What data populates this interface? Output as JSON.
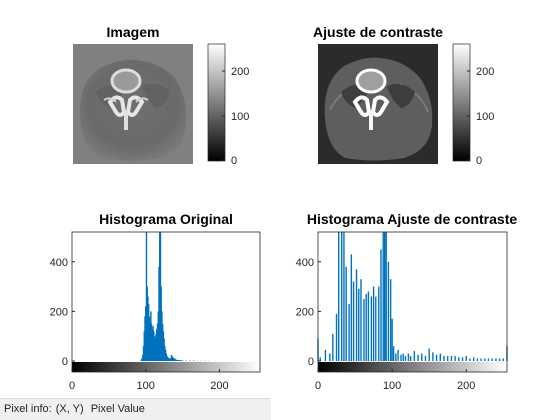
{
  "panels": {
    "image1": {
      "title": "Imagem",
      "colorbar_ticks": [
        "0",
        "100",
        "200"
      ]
    },
    "image2": {
      "title": "Ajuste de contraste",
      "colorbar_ticks": [
        "0",
        "100",
        "200"
      ]
    }
  },
  "colors": {
    "bar": "#0072bd",
    "axis": "#262626"
  },
  "status_bar": {
    "label": "Pixel info:",
    "coords": "(X, Y)",
    "value": "Pixel Value"
  },
  "chart_data": [
    {
      "type": "bar",
      "title": "Histograma Original",
      "xticks": [
        "0",
        "100",
        "200"
      ],
      "yticks": [
        "0",
        "200",
        "400"
      ],
      "xlim": [
        0,
        255
      ],
      "ylim": [
        0,
        520
      ],
      "x": [
        94,
        95,
        96,
        97,
        98,
        99,
        100,
        101,
        102,
        103,
        104,
        105,
        106,
        107,
        108,
        109,
        110,
        111,
        112,
        113,
        114,
        115,
        116,
        117,
        118,
        119,
        120,
        121,
        122,
        123,
        124,
        125,
        126,
        127,
        128,
        129,
        130,
        131,
        132,
        133,
        134,
        135,
        136,
        137,
        138,
        139,
        140,
        141,
        142,
        143,
        144,
        145,
        146,
        147,
        148,
        149,
        150,
        155,
        160,
        165,
        170,
        175,
        180,
        185
      ],
      "values": [
        5,
        12,
        25,
        60,
        120,
        180,
        220,
        520,
        300,
        260,
        230,
        180,
        160,
        200,
        150,
        130,
        140,
        120,
        100,
        90,
        110,
        130,
        150,
        200,
        380,
        520,
        520,
        300,
        200,
        150,
        120,
        90,
        60,
        45,
        30,
        20,
        15,
        12,
        10,
        10,
        12,
        25,
        18,
        15,
        12,
        10,
        8,
        6,
        5,
        4,
        4,
        3,
        3,
        3,
        3,
        2,
        2,
        2,
        2,
        2,
        1,
        1,
        1,
        1
      ]
    },
    {
      "type": "bar",
      "title": "Histograma Ajuste de contraste",
      "xticks": [
        "0",
        "100",
        "200"
      ],
      "yticks": [
        "0",
        "200",
        "400"
      ],
      "xlim": [
        0,
        255
      ],
      "ylim": [
        0,
        520
      ],
      "x": [
        0,
        3,
        10,
        16,
        20,
        25,
        28,
        32,
        35,
        38,
        42,
        45,
        48,
        52,
        55,
        58,
        62,
        65,
        68,
        72,
        75,
        78,
        82,
        85,
        88,
        90,
        92,
        95,
        98,
        100,
        102,
        105,
        108,
        112,
        115,
        118,
        122,
        125,
        130,
        135,
        140,
        145,
        150,
        155,
        160,
        165,
        170,
        175,
        180,
        185,
        190,
        195,
        200,
        205,
        210,
        215,
        220,
        225,
        230,
        235,
        240,
        245,
        250,
        255
      ],
      "values": [
        90,
        15,
        45,
        30,
        110,
        190,
        520,
        520,
        520,
        380,
        230,
        430,
        320,
        370,
        290,
        330,
        250,
        270,
        280,
        260,
        300,
        260,
        300,
        450,
        520,
        520,
        520,
        400,
        330,
        170,
        60,
        30,
        45,
        25,
        30,
        20,
        30,
        20,
        40,
        25,
        30,
        20,
        50,
        35,
        25,
        30,
        20,
        20,
        20,
        20,
        15,
        15,
        20,
        10,
        15,
        10,
        10,
        10,
        10,
        10,
        10,
        10,
        10,
        60
      ]
    }
  ]
}
